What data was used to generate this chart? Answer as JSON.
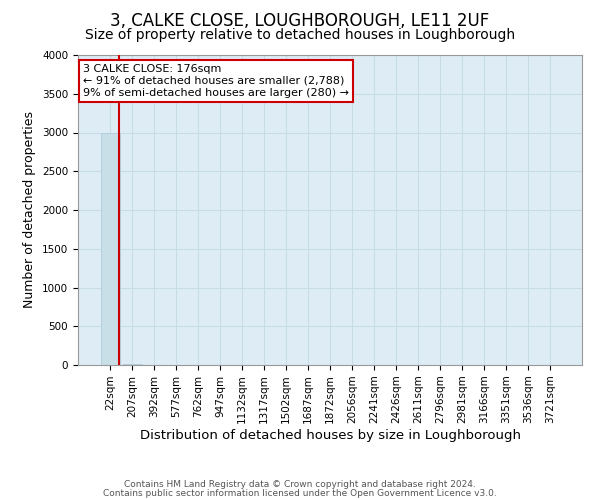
{
  "title": "3, CALKE CLOSE, LOUGHBOROUGH, LE11 2UF",
  "subtitle": "Size of property relative to detached houses in Loughborough",
  "xlabel": "Distribution of detached houses by size in Loughborough",
  "ylabel": "Number of detached properties",
  "footnote1": "Contains HM Land Registry data © Crown copyright and database right 2024.",
  "footnote2": "Contains public sector information licensed under the Open Government Licence v3.0.",
  "categories": [
    "22sqm",
    "207sqm",
    "392sqm",
    "577sqm",
    "762sqm",
    "947sqm",
    "1132sqm",
    "1317sqm",
    "1502sqm",
    "1687sqm",
    "1872sqm",
    "2056sqm",
    "2241sqm",
    "2426sqm",
    "2611sqm",
    "2796sqm",
    "2981sqm",
    "3166sqm",
    "3351sqm",
    "3536sqm",
    "3721sqm"
  ],
  "values": [
    2988,
    12,
    5,
    3,
    2,
    2,
    1,
    1,
    1,
    1,
    1,
    1,
    1,
    1,
    1,
    1,
    1,
    1,
    1,
    1,
    1
  ],
  "bar_color": "#c8dfe8",
  "bar_edge_color": "#adc8d8",
  "property_line_color": "#cc0000",
  "annotation_line1": "3 CALKE CLOSE: 176sqm",
  "annotation_line2": "← 91% of detached houses are smaller (2,788)",
  "annotation_line3": "9% of semi-detached houses are larger (280) →",
  "annotation_box_color": "#cc0000",
  "ylim": [
    0,
    4000
  ],
  "yticks": [
    0,
    500,
    1000,
    1500,
    2000,
    2500,
    3000,
    3500,
    4000
  ],
  "grid_color": "#c8dce8",
  "background_color": "#deedf5",
  "title_fontsize": 12,
  "subtitle_fontsize": 10,
  "axis_label_fontsize": 9,
  "tick_fontsize": 7.5,
  "annot_fontsize": 8
}
